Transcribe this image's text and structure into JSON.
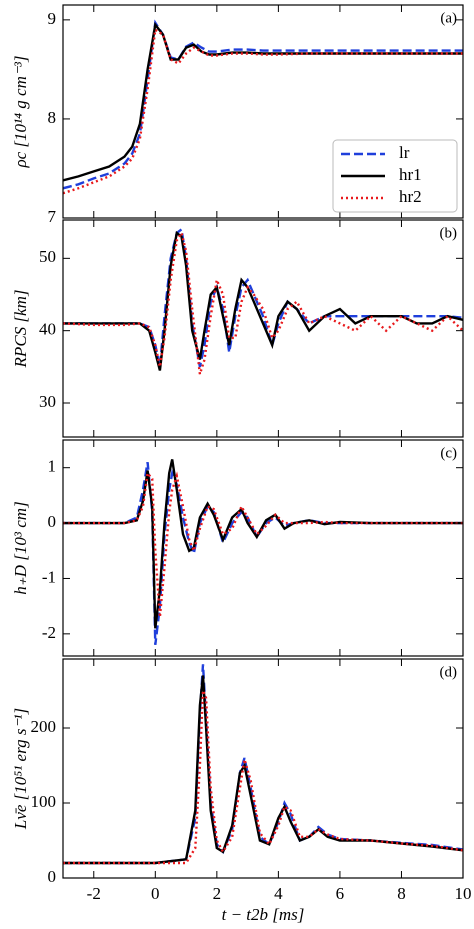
{
  "chart_data": [
    {
      "type": "line",
      "annotation": "(a)",
      "ylabel": "ρc [10¹⁴ g cm⁻³]",
      "x": [
        -3,
        -2.5,
        -2,
        -1.5,
        -1,
        -0.75,
        -0.5,
        -0.25,
        0,
        0.25,
        0.5,
        0.75,
        1,
        1.25,
        1.5,
        1.75,
        2,
        2.5,
        3,
        3.5,
        4,
        5,
        6,
        7,
        8,
        9,
        10
      ],
      "series": [
        {
          "name": "lr",
          "color": "#1f3fdb",
          "style": "dashed",
          "values": [
            7.3,
            7.34,
            7.4,
            7.45,
            7.55,
            7.65,
            7.85,
            8.4,
            8.97,
            8.85,
            8.62,
            8.6,
            8.73,
            8.77,
            8.72,
            8.68,
            8.68,
            8.7,
            8.7,
            8.69,
            8.69,
            8.69,
            8.69,
            8.69,
            8.69,
            8.69,
            8.69
          ]
        },
        {
          "name": "hr1",
          "color": "#000000",
          "style": "solid",
          "values": [
            7.38,
            7.42,
            7.47,
            7.52,
            7.62,
            7.72,
            7.95,
            8.5,
            8.95,
            8.85,
            8.6,
            8.6,
            8.72,
            8.75,
            8.68,
            8.65,
            8.65,
            8.67,
            8.67,
            8.66,
            8.66,
            8.66,
            8.66,
            8.66,
            8.66,
            8.66,
            8.66
          ]
        },
        {
          "name": "hr2",
          "color": "#e8191c",
          "style": "dotted",
          "values": [
            7.25,
            7.3,
            7.36,
            7.42,
            7.52,
            7.6,
            7.8,
            8.3,
            8.9,
            8.85,
            8.6,
            8.56,
            8.66,
            8.72,
            8.68,
            8.64,
            8.64,
            8.66,
            8.66,
            8.65,
            8.65,
            8.66,
            8.66,
            8.66,
            8.66,
            8.66,
            8.66
          ]
        }
      ],
      "xlim": [
        -3,
        10
      ],
      "xticks": [
        -2,
        0,
        2,
        4,
        6,
        8,
        10
      ],
      "ylim": [
        7,
        9.15
      ],
      "yticks": [
        7,
        8,
        9
      ],
      "legend": "lower right"
    },
    {
      "type": "line",
      "annotation": "(b)",
      "ylabel": "RPCS [km]",
      "x": [
        -3,
        -2,
        -1,
        -0.5,
        -0.2,
        0,
        0.15,
        0.3,
        0.5,
        0.7,
        0.85,
        1.0,
        1.2,
        1.45,
        1.6,
        1.8,
        2.0,
        2.2,
        2.4,
        2.6,
        2.8,
        3.0,
        3.2,
        3.5,
        3.8,
        4.0,
        4.3,
        4.6,
        5,
        5.5,
        6,
        6.5,
        7,
        7.5,
        8,
        8.5,
        9,
        9.5,
        10
      ],
      "series": [
        {
          "name": "lr",
          "color": "#1f3fdb",
          "style": "dashed",
          "values": [
            41,
            41,
            41,
            41,
            40.5,
            38,
            35,
            42,
            50,
            53.5,
            54,
            50,
            41,
            35,
            38,
            44,
            46,
            43,
            37,
            42,
            46,
            47,
            45,
            42,
            38,
            41,
            44,
            43,
            41,
            42,
            42,
            42,
            42,
            42,
            42,
            42,
            42,
            42,
            41.8
          ]
        },
        {
          "name": "hr1",
          "color": "#000000",
          "style": "solid",
          "values": [
            41,
            41,
            41,
            41,
            40,
            37,
            34.5,
            40,
            49,
            53.5,
            53,
            49,
            40,
            36,
            40,
            45,
            46,
            42,
            38,
            43,
            47,
            46,
            44,
            41,
            38,
            42,
            44,
            43,
            40,
            42,
            43,
            41,
            42,
            42,
            42,
            41,
            41,
            42,
            41.5
          ]
        },
        {
          "name": "hr2",
          "color": "#e8191c",
          "style": "dotted",
          "values": [
            41,
            40.8,
            40.8,
            41,
            40.5,
            38,
            35,
            39,
            47,
            52.5,
            53.5,
            51,
            43,
            34,
            36,
            42,
            47,
            45,
            39,
            39,
            44,
            46,
            45,
            43,
            39,
            40,
            43,
            44,
            41,
            42,
            41,
            40,
            42,
            40,
            42,
            41,
            40,
            42,
            40
          ]
        }
      ],
      "xlim": [
        -3,
        10
      ],
      "xticks": [
        -2,
        0,
        2,
        4,
        6,
        8,
        10
      ],
      "ylim": [
        25.3,
        55.3
      ],
      "yticks": [
        30,
        40,
        50
      ]
    },
    {
      "type": "line",
      "annotation": "(c)",
      "ylabel": "h₊D [10³ cm]",
      "x": [
        -3,
        -1,
        -0.6,
        -0.4,
        -0.25,
        -0.1,
        0,
        0.15,
        0.3,
        0.45,
        0.55,
        0.7,
        0.9,
        1.1,
        1.25,
        1.45,
        1.7,
        1.9,
        2.2,
        2.5,
        2.8,
        3.0,
        3.3,
        3.6,
        3.9,
        4.2,
        4.5,
        5,
        5.5,
        6,
        7,
        8,
        9,
        10
      ],
      "series": [
        {
          "name": "lr",
          "color": "#1f3fdb",
          "style": "dashed",
          "values": [
            0,
            0,
            0.1,
            0.6,
            1.1,
            0.2,
            -2.2,
            -1.5,
            -0.2,
            0.6,
            0.9,
            0.7,
            0.1,
            -0.35,
            -0.55,
            0,
            0.3,
            0.2,
            -0.35,
            0,
            0.2,
            0.1,
            -0.25,
            0,
            0.1,
            -0.05,
            0,
            0.05,
            0,
            0,
            0,
            0,
            0,
            0
          ]
        },
        {
          "name": "hr1",
          "color": "#000000",
          "style": "solid",
          "values": [
            0,
            0,
            0.05,
            0.4,
            0.95,
            0.3,
            -1.9,
            -1.2,
            0,
            0.9,
            1.15,
            0.6,
            -0.2,
            -0.5,
            -0.45,
            0.1,
            0.35,
            0.15,
            -0.3,
            0.1,
            0.25,
            0,
            -0.25,
            0.05,
            0.15,
            -0.1,
            0,
            0.05,
            -0.02,
            0.02,
            0,
            0,
            0,
            0
          ]
        },
        {
          "name": "hr2",
          "color": "#e8191c",
          "style": "dotted",
          "values": [
            0,
            0,
            0.05,
            0.3,
            0.9,
            0.8,
            -0.5,
            -1.7,
            -0.8,
            0.2,
            0.6,
            0.85,
            0.3,
            -0.3,
            -0.5,
            -0.1,
            0.3,
            0.25,
            -0.2,
            -0.1,
            0.3,
            0.1,
            -0.2,
            -0.05,
            0.15,
            0,
            0,
            0,
            0.02,
            0,
            0,
            0,
            0,
            0
          ]
        }
      ],
      "xlim": [
        -3,
        10
      ],
      "xticks": [
        -2,
        0,
        2,
        4,
        6,
        8,
        10
      ],
      "ylim": [
        -2.4,
        1.5
      ],
      "yticks": [
        -2,
        -1,
        0,
        1
      ]
    },
    {
      "type": "line",
      "annotation": "(d)",
      "ylabel": "Lν̄e [10⁵¹ erg s⁻¹]",
      "xlabel": "t − t2b [ms]",
      "x": [
        -3,
        0,
        1.0,
        1.3,
        1.45,
        1.55,
        1.65,
        1.8,
        2.0,
        2.2,
        2.5,
        2.75,
        2.9,
        3.1,
        3.4,
        3.7,
        4.0,
        4.2,
        4.4,
        4.7,
        5.0,
        5.3,
        5.6,
        6,
        7,
        8,
        9,
        10
      ],
      "series": [
        {
          "name": "lr",
          "color": "#1f3fdb",
          "style": "dashed",
          "values": [
            20,
            20,
            25,
            80,
            220,
            285,
            210,
            100,
            45,
            35,
            65,
            140,
            160,
            120,
            55,
            45,
            75,
            100,
            85,
            50,
            55,
            68,
            58,
            52,
            50,
            47,
            44,
            38
          ]
        },
        {
          "name": "hr1",
          "color": "#000000",
          "style": "solid",
          "values": [
            20,
            20,
            25,
            90,
            230,
            270,
            200,
            90,
            40,
            35,
            70,
            140,
            150,
            110,
            50,
            45,
            80,
            95,
            75,
            50,
            55,
            65,
            55,
            50,
            50,
            46,
            42,
            37
          ]
        },
        {
          "name": "hr2",
          "color": "#e8191c",
          "style": "dotted",
          "values": [
            20,
            20,
            20,
            40,
            150,
            250,
            240,
            120,
            50,
            35,
            55,
            120,
            158,
            130,
            60,
            45,
            70,
            95,
            90,
            55,
            55,
            65,
            58,
            52,
            50,
            46,
            43,
            37
          ]
        }
      ],
      "xlim": [
        -3,
        10
      ],
      "xticks": [
        -2,
        0,
        2,
        4,
        6,
        8,
        10
      ],
      "ylim": [
        0,
        292
      ],
      "yticks": [
        0,
        100,
        200
      ]
    }
  ]
}
